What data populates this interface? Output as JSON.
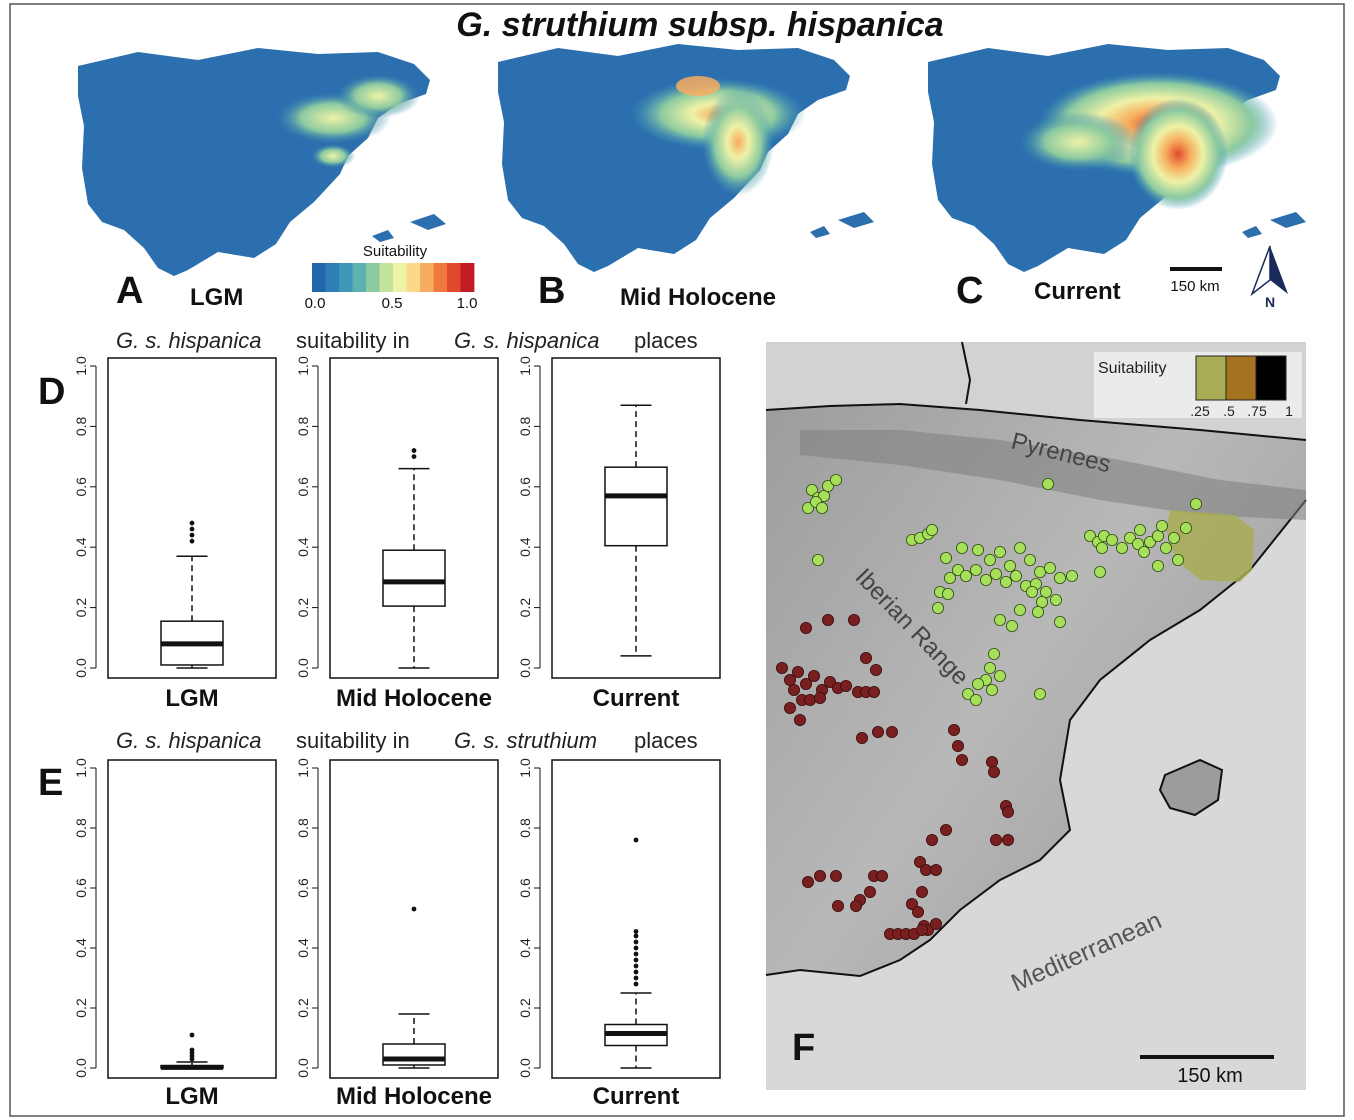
{
  "title": "G. struthium subsp. hispanica",
  "colors": {
    "scale": [
      "#2166ac",
      "#2e7fb5",
      "#3f97b8",
      "#5fb0b0",
      "#8ccaa0",
      "#c3e39b",
      "#eef2a6",
      "#fbd88a",
      "#f7ad5f",
      "#ef7a40",
      "#e04a2c",
      "#c21c25"
    ],
    "high_point": "#a6e05a",
    "low_point": "#7a1f1f",
    "overlay_low": "#a8ad55",
    "overlay_mid": "#a57220",
    "overlay_high": "#000000"
  },
  "maps": {
    "panels": [
      {
        "letter": "A",
        "label": "LGM"
      },
      {
        "letter": "B",
        "label": "Mid Holocene"
      },
      {
        "letter": "C",
        "label": "Current"
      }
    ],
    "legend": {
      "title": "Suitability",
      "ticks": [
        "0.0",
        "0.5",
        "1.0"
      ]
    },
    "scalebar": "150 km",
    "north": "N"
  },
  "chart_data": [
    {
      "type": "box",
      "panel": "D",
      "title": {
        "sp1": "G. s. hispanica",
        "mid": "suitability in",
        "sp2": "G. s. hispanica",
        "end": "places"
      },
      "ylim": [
        0,
        1
      ],
      "yticks": [
        "0.0",
        "0.2",
        "0.4",
        "0.6",
        "0.8",
        "1.0"
      ],
      "boxes": [
        {
          "label": "LGM",
          "min": 0.0,
          "q1": 0.01,
          "median": 0.08,
          "q3": 0.155,
          "whisker_high": 0.37,
          "outliers": [
            0.42,
            0.44,
            0.46,
            0.48
          ]
        },
        {
          "label": "Mid Holocene",
          "min": 0.0,
          "q1": 0.205,
          "median": 0.285,
          "q3": 0.39,
          "whisker_high": 0.66,
          "outliers": [
            0.7,
            0.72
          ]
        },
        {
          "label": "Current",
          "min": 0.04,
          "q1": 0.405,
          "median": 0.57,
          "q3": 0.665,
          "whisker_high": 0.87,
          "outliers": []
        }
      ]
    },
    {
      "type": "box",
      "panel": "E",
      "title": {
        "sp1": "G. s. hispanica",
        "mid": "suitability in",
        "sp2": "G. s. struthium",
        "end": "places"
      },
      "ylim": [
        0,
        1
      ],
      "yticks": [
        "0.0",
        "0.2",
        "0.4",
        "0.6",
        "0.8",
        "1.0"
      ],
      "boxes": [
        {
          "label": "LGM",
          "min": 0.0,
          "q1": 0.0,
          "median": 0.002,
          "q3": 0.008,
          "whisker_high": 0.02,
          "outliers": [
            0.03,
            0.04,
            0.05,
            0.06,
            0.11
          ]
        },
        {
          "label": "Mid Holocene",
          "min": 0.0,
          "q1": 0.01,
          "median": 0.03,
          "q3": 0.08,
          "whisker_high": 0.18,
          "outliers": [
            0.53
          ]
        },
        {
          "label": "Current",
          "min": 0.0,
          "q1": 0.075,
          "median": 0.115,
          "q3": 0.145,
          "whisker_high": 0.25,
          "outliers": [
            0.28,
            0.3,
            0.32,
            0.34,
            0.36,
            0.38,
            0.4,
            0.42,
            0.44,
            0.455,
            0.76
          ]
        }
      ]
    }
  ],
  "map_f": {
    "letter": "F",
    "legend": {
      "title": "Suitability",
      "ticks": [
        ".25",
        ".5",
        ".75",
        "1"
      ]
    },
    "labels": [
      "Pyrenees",
      "Iberian Range",
      "Mediterranean"
    ],
    "scalebar": "150 km"
  }
}
